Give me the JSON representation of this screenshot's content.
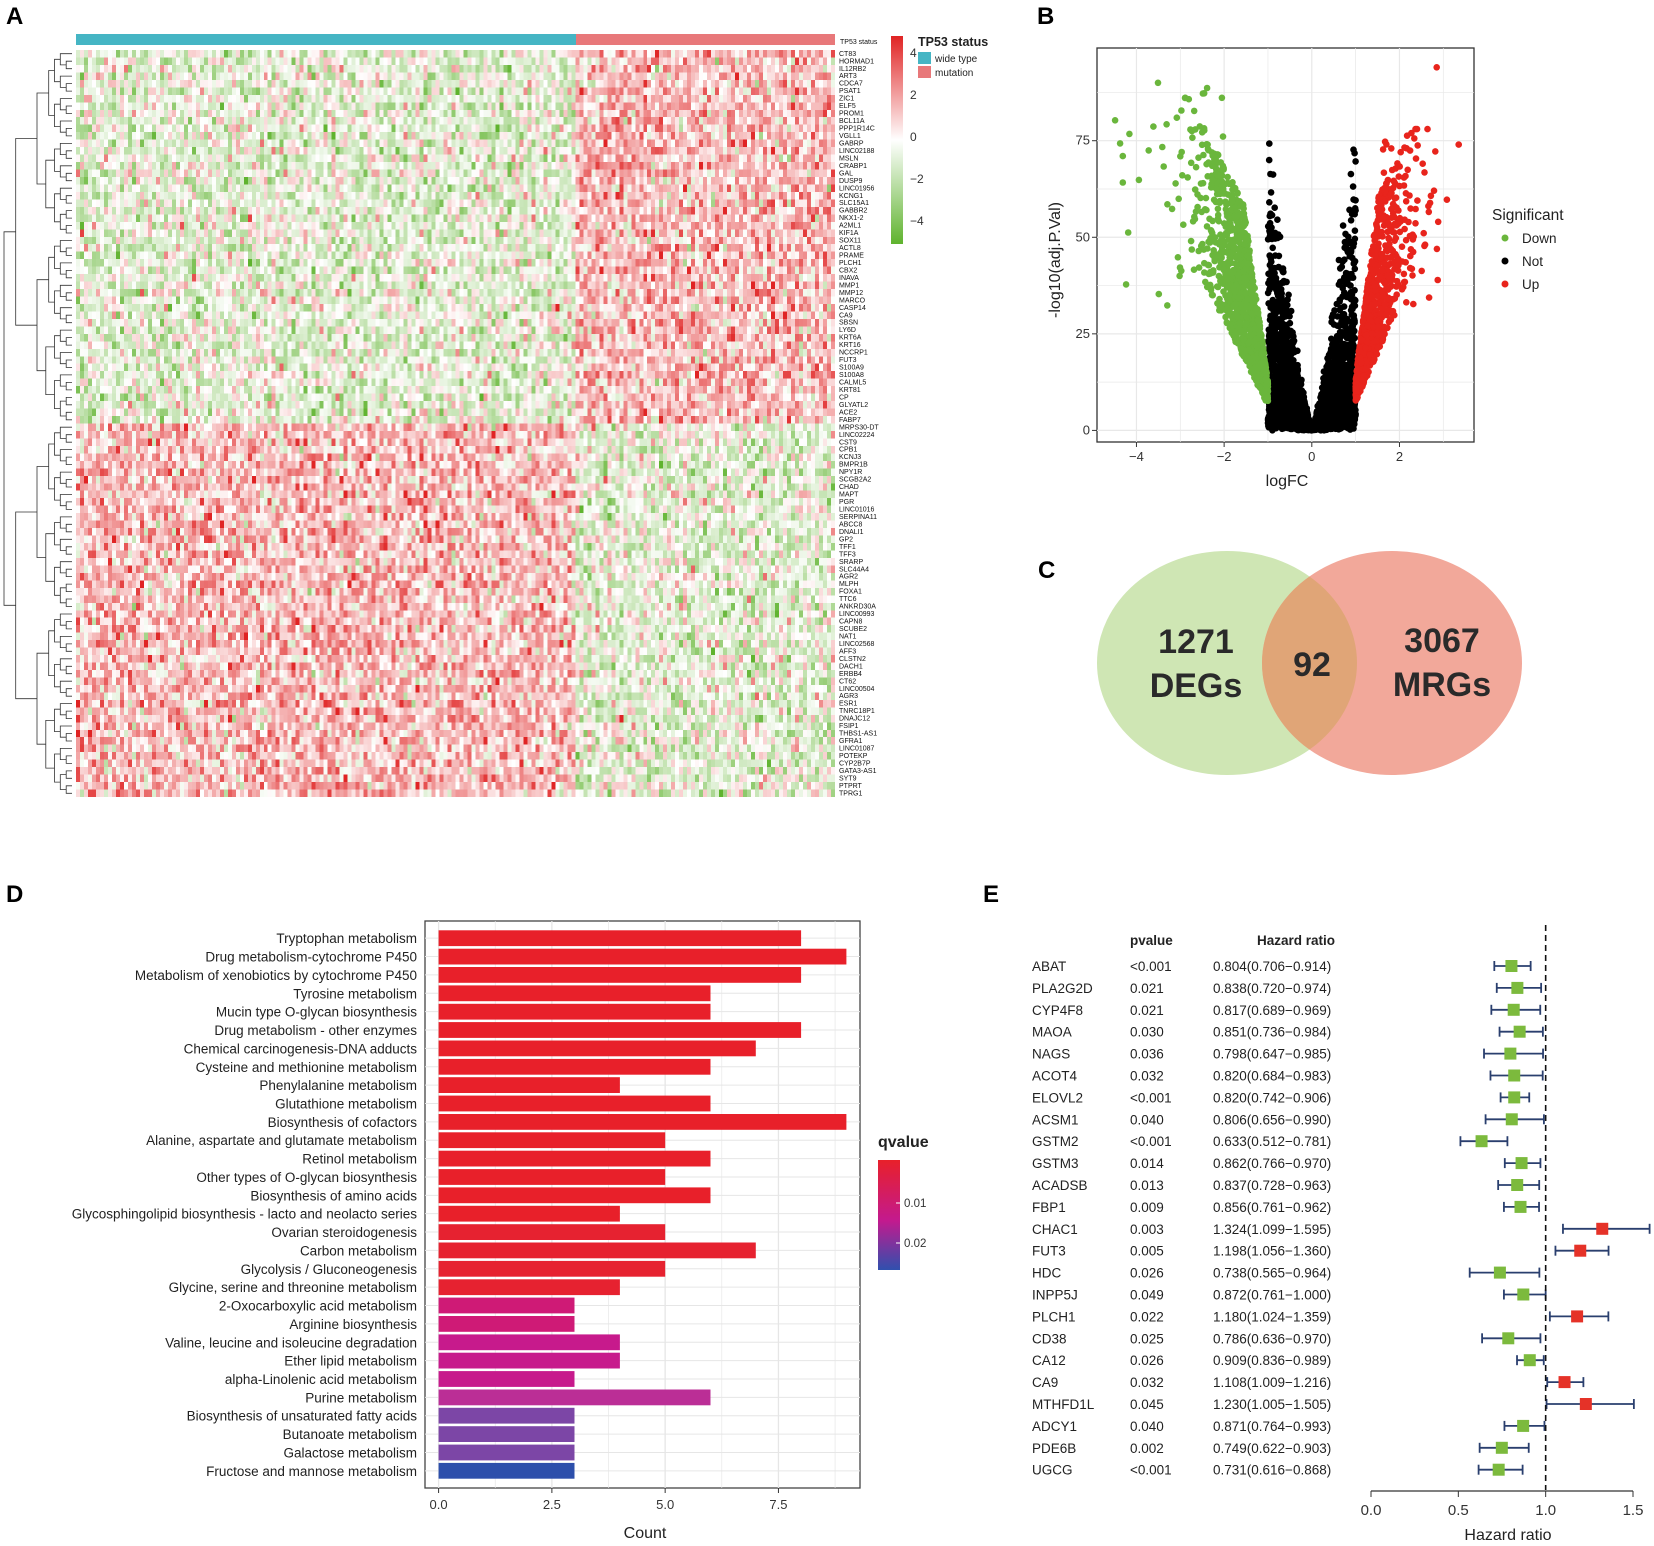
{
  "chart_data": [
    {
      "panel": "A",
      "type": "heatmap",
      "annotation_label": "TP53 status",
      "legend_title": "TP53 status",
      "legend_groups": [
        {
          "name": "wide type",
          "color": "#45b5c4"
        },
        {
          "name": "mutation",
          "color": "#e8787a"
        }
      ],
      "color_scale": {
        "low": "#5fb32e",
        "mid": "#ffffff",
        "high": "#e02424"
      },
      "colorbar_ticks": [
        4,
        2,
        0,
        -2,
        -4
      ],
      "genes": [
        "CT83",
        "HORMAD1",
        "IL12RB2",
        "ART3",
        "CDCA7",
        "PSAT1",
        "ZIC1",
        "ELF5",
        "PROM1",
        "BCL11A",
        "PPP1R14C",
        "VGLL1",
        "GABRP",
        "LINC02188",
        "MSLN",
        "CRABP1",
        "GAL",
        "DUSP9",
        "LINC01956",
        "KCNG1",
        "SLC15A1",
        "GABBR2",
        "NKX1-2",
        "A2ML1",
        "KIF1A",
        "SOX11",
        "ACTL8",
        "PRAME",
        "PLCH1",
        "CBX2",
        "INAVA",
        "MMP1",
        "MMP12",
        "MARCO",
        "CASP14",
        "CA9",
        "SBSN",
        "LY6D",
        "KRT6A",
        "KRT16",
        "NCCRP1",
        "FUT3",
        "S100A9",
        "S100A8",
        "CALML5",
        "KRT81",
        "CP",
        "GLYATL2",
        "ACE2",
        "FABP7",
        "MRPS30-DT",
        "LINC02224",
        "CST9",
        "CPB1",
        "KCNJ3",
        "BMPR1B",
        "NPY1R",
        "SCGB2A2",
        "CHAD",
        "MAPT",
        "PGR",
        "LINC01016",
        "SERPINA11",
        "ABCC8",
        "DNALI1",
        "GP2",
        "TFF1",
        "TFF3",
        "SRARP",
        "SLC44A4",
        "AGR2",
        "MLPH",
        "FOXA1",
        "TTC6",
        "ANKRD30A",
        "LINC00993",
        "CAPN8",
        "SCUBE2",
        "NAT1",
        "LINC02568",
        "AFF3",
        "CLSTN2",
        "DACH1",
        "ERBB4",
        "CT62",
        "LINC00504",
        "AGR3",
        "ESR1",
        "TNRC18P1",
        "DNAJC12",
        "FSIP1",
        "THBS1-AS1",
        "GFRA1",
        "LINC01087",
        "POTEKP",
        "CYP2B7P",
        "GATA3-AS1",
        "SYT9",
        "PTPRT",
        "TPRG1"
      ]
    },
    {
      "panel": "B",
      "type": "scatter",
      "xlabel": "logFC",
      "ylabel": "-log10(adj.P.Val)",
      "xticks": [
        -4,
        -2,
        0,
        2
      ],
      "yticks": [
        0,
        25,
        50,
        75
      ],
      "xlim": [
        -4.9,
        3.7
      ],
      "ylim": [
        -3,
        99
      ],
      "legend_title": "Significant",
      "legend": [
        {
          "name": "Down",
          "color": "#6ab63c"
        },
        {
          "name": "Not",
          "color": "#000000"
        },
        {
          "name": "Up",
          "color": "#e8241c"
        }
      ]
    },
    {
      "panel": "C",
      "type": "venn",
      "sets": [
        {
          "count": "1271",
          "name": "DEGs",
          "color": "#cfe6b4"
        },
        {
          "count": "3067",
          "name": "MRGs",
          "color": "#f2a89a"
        }
      ],
      "intersection": "92",
      "intersection_color": "#e0a577"
    },
    {
      "panel": "D",
      "type": "bar",
      "xlabel": "Count",
      "xticks": [
        0.0,
        2.5,
        5.0,
        7.5
      ],
      "xtick_labels": [
        "0.0",
        "2.5",
        "5.0",
        "7.5"
      ],
      "xlim": [
        -0.3,
        9.3
      ],
      "legend_title": "qvalue",
      "legend_ticks": [
        "0.01",
        "0.02"
      ],
      "categories": [
        "Tryptophan metabolism",
        "Drug metabolism-cytochrome P450",
        "Metabolism of xenobiotics by cytochrome P450",
        "Tyrosine metabolism",
        "Mucin type O-glycan biosynthesis",
        "Drug metabolism - other enzymes",
        "Chemical carcinogenesis-DNA adducts",
        "Cysteine and methionine metabolism",
        "Phenylalanine metabolism",
        "Glutathione metabolism",
        "Biosynthesis of cofactors",
        "Alanine, aspartate and glutamate metabolism",
        "Retinol metabolism",
        "Other types of O-glycan biosynthesis",
        "Biosynthesis of amino acids",
        "Glycosphingolipid biosynthesis - lacto and neolacto series",
        "Ovarian steroidogenesis",
        "Carbon metabolism",
        "Glycolysis / Gluconeogenesis",
        "Glycine, serine and threonine metabolism",
        "2-Oxocarboxylic acid metabolism",
        "Arginine biosynthesis",
        "Valine, leucine and isoleucine degradation",
        "Ether lipid metabolism",
        "alpha-Linolenic acid metabolism",
        "Purine metabolism",
        "Biosynthesis of unsaturated fatty acids",
        "Butanoate metabolism",
        "Galactose metabolism",
        "Fructose and mannose metabolism"
      ],
      "values": [
        8,
        9,
        8,
        6,
        6,
        8,
        7,
        6,
        4,
        6,
        9,
        5,
        6,
        5,
        6,
        4,
        5,
        7,
        5,
        4,
        3,
        3,
        4,
        4,
        3,
        6,
        3,
        3,
        3,
        3
      ],
      "colors": [
        "#e8202a",
        "#e8202a",
        "#e8202a",
        "#e8202a",
        "#e8202a",
        "#e8202a",
        "#e8202a",
        "#e8202a",
        "#e8202a",
        "#e8202a",
        "#e8202a",
        "#e8202a",
        "#e8202a",
        "#e8202a",
        "#e8202a",
        "#e8202a",
        "#e62230",
        "#e62230",
        "#e62230",
        "#e62230",
        "#cf1a76",
        "#cf1a76",
        "#c71a8c",
        "#c71a8c",
        "#c71a8c",
        "#bb2e96",
        "#7c46a6",
        "#7c46a6",
        "#7c46a6",
        "#2d4fab"
      ]
    },
    {
      "panel": "E",
      "type": "forest",
      "col_pvalue": "pvalue",
      "col_hr": "Hazard ratio",
      "xlabel": "Hazard ratio",
      "xticks": [
        0.0,
        0.5,
        1.0,
        1.5
      ],
      "xtick_labels": [
        "0.0",
        "0.5",
        "1.0",
        "1.5"
      ],
      "reference": 1.0,
      "rows": [
        {
          "gene": "ABAT",
          "pvalue": "<0.001",
          "hr_text": "0.804(0.706−0.914)",
          "hr": 0.804,
          "lo": 0.706,
          "hi": 0.914
        },
        {
          "gene": "PLA2G2D",
          "pvalue": "0.021",
          "hr_text": "0.838(0.720−0.974)",
          "hr": 0.838,
          "lo": 0.72,
          "hi": 0.974
        },
        {
          "gene": "CYP4F8",
          "pvalue": "0.021",
          "hr_text": "0.817(0.689−0.969)",
          "hr": 0.817,
          "lo": 0.689,
          "hi": 0.969
        },
        {
          "gene": "MAOA",
          "pvalue": "0.030",
          "hr_text": "0.851(0.736−0.984)",
          "hr": 0.851,
          "lo": 0.736,
          "hi": 0.984
        },
        {
          "gene": "NAGS",
          "pvalue": "0.036",
          "hr_text": "0.798(0.647−0.985)",
          "hr": 0.798,
          "lo": 0.647,
          "hi": 0.985
        },
        {
          "gene": "ACOT4",
          "pvalue": "0.032",
          "hr_text": "0.820(0.684−0.983)",
          "hr": 0.82,
          "lo": 0.684,
          "hi": 0.983
        },
        {
          "gene": "ELOVL2",
          "pvalue": "<0.001",
          "hr_text": "0.820(0.742−0.906)",
          "hr": 0.82,
          "lo": 0.742,
          "hi": 0.906
        },
        {
          "gene": "ACSM1",
          "pvalue": "0.040",
          "hr_text": "0.806(0.656−0.990)",
          "hr": 0.806,
          "lo": 0.656,
          "hi": 0.99
        },
        {
          "gene": "GSTM2",
          "pvalue": "<0.001",
          "hr_text": "0.633(0.512−0.781)",
          "hr": 0.633,
          "lo": 0.512,
          "hi": 0.781
        },
        {
          "gene": "GSTM3",
          "pvalue": "0.014",
          "hr_text": "0.862(0.766−0.970)",
          "hr": 0.862,
          "lo": 0.766,
          "hi": 0.97
        },
        {
          "gene": "ACADSB",
          "pvalue": "0.013",
          "hr_text": "0.837(0.728−0.963)",
          "hr": 0.837,
          "lo": 0.728,
          "hi": 0.963
        },
        {
          "gene": "FBP1",
          "pvalue": "0.009",
          "hr_text": "0.856(0.761−0.962)",
          "hr": 0.856,
          "lo": 0.761,
          "hi": 0.962
        },
        {
          "gene": "CHAC1",
          "pvalue": "0.003",
          "hr_text": "1.324(1.099−1.595)",
          "hr": 1.324,
          "lo": 1.099,
          "hi": 1.595
        },
        {
          "gene": "FUT3",
          "pvalue": "0.005",
          "hr_text": "1.198(1.056−1.360)",
          "hr": 1.198,
          "lo": 1.056,
          "hi": 1.36
        },
        {
          "gene": "HDC",
          "pvalue": "0.026",
          "hr_text": "0.738(0.565−0.964)",
          "hr": 0.738,
          "lo": 0.565,
          "hi": 0.964
        },
        {
          "gene": "INPP5J",
          "pvalue": "0.049",
          "hr_text": "0.872(0.761−1.000)",
          "hr": 0.872,
          "lo": 0.761,
          "hi": 1.0
        },
        {
          "gene": "PLCH1",
          "pvalue": "0.022",
          "hr_text": "1.180(1.024−1.359)",
          "hr": 1.18,
          "lo": 1.024,
          "hi": 1.359
        },
        {
          "gene": "CD38",
          "pvalue": "0.025",
          "hr_text": "0.786(0.636−0.970)",
          "hr": 0.786,
          "lo": 0.636,
          "hi": 0.97
        },
        {
          "gene": "CA12",
          "pvalue": "0.026",
          "hr_text": "0.909(0.836−0.989)",
          "hr": 0.909,
          "lo": 0.836,
          "hi": 0.989
        },
        {
          "gene": "CA9",
          "pvalue": "0.032",
          "hr_text": "1.108(1.009−1.216)",
          "hr": 1.108,
          "lo": 1.009,
          "hi": 1.216
        },
        {
          "gene": "MTHFD1L",
          "pvalue": "0.045",
          "hr_text": "1.230(1.005−1.505)",
          "hr": 1.23,
          "lo": 1.005,
          "hi": 1.505
        },
        {
          "gene": "ADCY1",
          "pvalue": "0.040",
          "hr_text": "0.871(0.764−0.993)",
          "hr": 0.871,
          "lo": 0.764,
          "hi": 0.993
        },
        {
          "gene": "PDE6B",
          "pvalue": "0.002",
          "hr_text": "0.749(0.622−0.903)",
          "hr": 0.749,
          "lo": 0.622,
          "hi": 0.903
        },
        {
          "gene": "UGCG",
          "pvalue": "<0.001",
          "hr_text": "0.731(0.616−0.868)",
          "hr": 0.731,
          "lo": 0.616,
          "hi": 0.868
        }
      ]
    }
  ],
  "panel_labels": {
    "a": "A",
    "b": "B",
    "c": "C",
    "d": "D",
    "e": "E"
  }
}
